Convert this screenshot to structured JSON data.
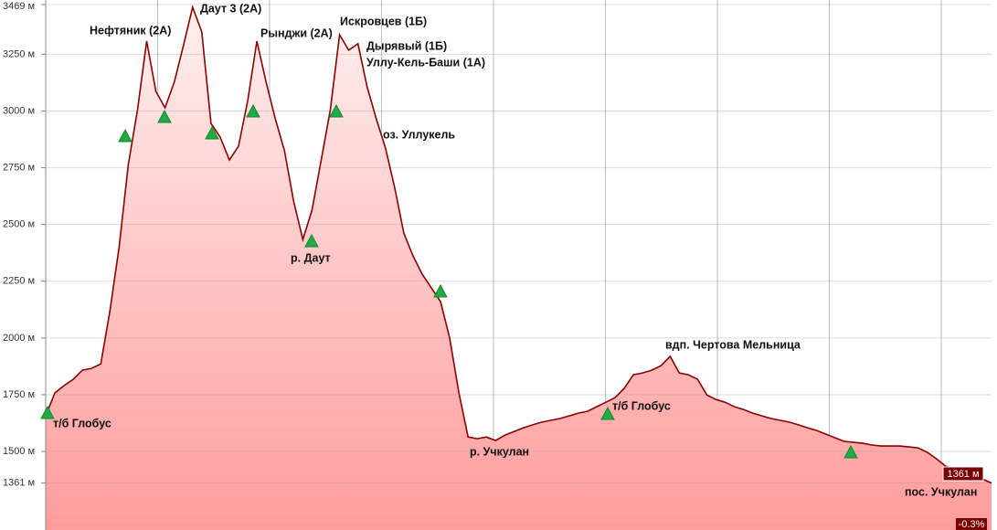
{
  "chart_data": {
    "type": "area",
    "values": [
      1657,
      1758,
      1790,
      1818,
      1858,
      1866,
      1886,
      2120,
      2402,
      2764,
      3006,
      3308,
      3086,
      3014,
      3127,
      3288,
      3457,
      3348,
      2945,
      2885,
      2784,
      2845,
      3046,
      3308,
      3127,
      2966,
      2825,
      2603,
      2434,
      2563,
      2784,
      3006,
      3336,
      3268,
      3296,
      3107,
      2966,
      2837,
      2664,
      2462,
      2362,
      2281,
      2221,
      2160,
      1999,
      1758,
      1564,
      1556,
      1564,
      1548,
      1572,
      1588,
      1604,
      1617,
      1629,
      1637,
      1645,
      1657,
      1669,
      1677,
      1697,
      1717,
      1737,
      1778,
      1838,
      1846,
      1858,
      1878,
      1919,
      1846,
      1838,
      1818,
      1749,
      1729,
      1717,
      1697,
      1685,
      1669,
      1657,
      1645,
      1637,
      1629,
      1617,
      1604,
      1592,
      1576,
      1560,
      1544,
      1540,
      1536,
      1528,
      1524,
      1524,
      1524,
      1520,
      1516,
      1496,
      1468,
      1435,
      1423,
      1407,
      1395,
      1379,
      1361
    ],
    "color": "#8b0000",
    "ylim": [
      1154,
      3489
    ],
    "yticks": [
      {
        "value": 3469,
        "label": "3469 м"
      },
      {
        "value": 3250,
        "label": "3250 м"
      },
      {
        "value": 3000,
        "label": "3000 м"
      },
      {
        "value": 2750,
        "label": "2750 м"
      },
      {
        "value": 2500,
        "label": "2500 м"
      },
      {
        "value": 2250,
        "label": "2250 м"
      },
      {
        "value": 2000,
        "label": "2000 м"
      },
      {
        "value": 1750,
        "label": "1750 м"
      },
      {
        "value": 1500,
        "label": "1500 м"
      },
      {
        "value": 1361,
        "label": "1361 м"
      }
    ],
    "grid": true,
    "annotations": [
      "Нефтяник (2А)",
      "Даут 3 (2А)",
      "Рынджи (2А)",
      "Искровцев (1Б)",
      "Дырявый (1Б)",
      "Уллу-Кель-Баши (1А)",
      "оз. Уллукель",
      "р. Даут",
      "т/б Глобус",
      "р. Учкулан",
      "вдп. Чертова Мельница",
      "т/б Глобус",
      "пос. Учкулан"
    ],
    "current_label": "1361 м",
    "grade_label": "-0.3%"
  }
}
